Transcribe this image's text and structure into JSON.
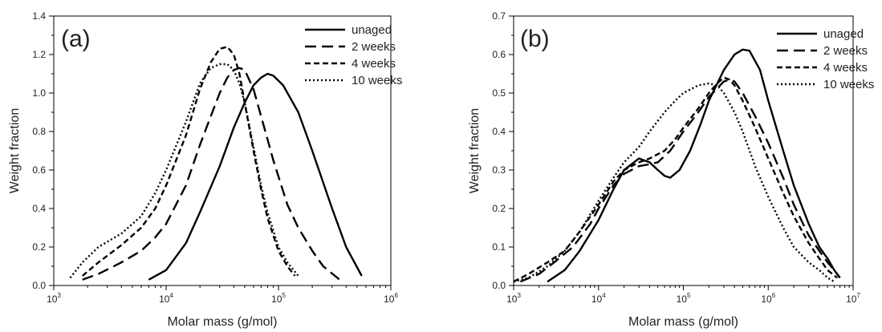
{
  "chart_data": [
    {
      "type": "line",
      "panel_label": "(a)",
      "xlabel": "Molar mass (g/mol)",
      "ylabel": "Weight fraction",
      "xscale": "log",
      "xlim": [
        1000,
        1000000
      ],
      "ylim": [
        0,
        1.4
      ],
      "xticks": [
        {
          "value": 1000,
          "base": "10",
          "exp": "3"
        },
        {
          "value": 10000,
          "base": "10",
          "exp": "4"
        },
        {
          "value": 100000,
          "base": "10",
          "exp": "5"
        },
        {
          "value": 1000000,
          "base": "10",
          "exp": "6"
        }
      ],
      "yticks": [
        "0.0",
        "0.2",
        "0.4",
        "0.6",
        "0.8",
        "1.0",
        "1.2",
        "1.4"
      ],
      "legend_position": "top-right",
      "grid": false,
      "series": [
        {
          "name": "unaged",
          "style": "solid",
          "x": [
            7000,
            10000,
            15000,
            20000,
            30000,
            40000,
            50000,
            60000,
            70000,
            80000,
            90000,
            110000,
            150000,
            200000,
            300000,
            400000,
            550000
          ],
          "y": [
            0.03,
            0.08,
            0.22,
            0.38,
            0.62,
            0.82,
            0.95,
            1.04,
            1.08,
            1.1,
            1.09,
            1.04,
            0.9,
            0.7,
            0.4,
            0.2,
            0.05
          ]
        },
        {
          "name": "2 weeks",
          "style": "dashed",
          "x": [
            1800,
            2500,
            4000,
            6000,
            8000,
            10000,
            15000,
            20000,
            25000,
            30000,
            35000,
            40000,
            45000,
            50000,
            60000,
            70000,
            90000,
            120000,
            150000,
            200000,
            250000,
            350000
          ],
          "y": [
            0.03,
            0.06,
            0.12,
            0.18,
            0.25,
            0.32,
            0.52,
            0.73,
            0.88,
            1.0,
            1.08,
            1.12,
            1.13,
            1.12,
            1.02,
            0.88,
            0.65,
            0.42,
            0.3,
            0.18,
            0.1,
            0.03
          ]
        },
        {
          "name": "4 weeks",
          "style": "short-dashed",
          "x": [
            1800,
            2500,
            4000,
            6000,
            8000,
            10000,
            15000,
            20000,
            25000,
            30000,
            35000,
            40000,
            45000,
            50000,
            60000,
            70000,
            80000,
            100000,
            120000,
            140000
          ],
          "y": [
            0.05,
            0.12,
            0.21,
            0.3,
            0.4,
            0.52,
            0.78,
            1.02,
            1.16,
            1.23,
            1.24,
            1.2,
            1.1,
            0.95,
            0.7,
            0.5,
            0.35,
            0.18,
            0.1,
            0.05
          ]
        },
        {
          "name": "10 weeks",
          "style": "dotted",
          "x": [
            1400,
            1800,
            2500,
            4000,
            6000,
            8000,
            10000,
            15000,
            20000,
            25000,
            30000,
            35000,
            40000,
            45000,
            50000,
            60000,
            70000,
            80000,
            100000,
            120000,
            150000
          ],
          "y": [
            0.04,
            0.12,
            0.2,
            0.27,
            0.36,
            0.48,
            0.6,
            0.85,
            1.05,
            1.13,
            1.15,
            1.15,
            1.12,
            1.05,
            0.95,
            0.72,
            0.52,
            0.38,
            0.2,
            0.12,
            0.05
          ]
        }
      ]
    },
    {
      "type": "line",
      "panel_label": "(b)",
      "xlabel": "Molar mass (g/mol)",
      "ylabel": "Weight fraction",
      "xscale": "log",
      "xlim": [
        1000,
        10000000
      ],
      "ylim": [
        0,
        0.7
      ],
      "xticks": [
        {
          "value": 1000,
          "base": "10",
          "exp": "3"
        },
        {
          "value": 10000,
          "base": "10",
          "exp": "4"
        },
        {
          "value": 100000,
          "base": "10",
          "exp": "5"
        },
        {
          "value": 1000000,
          "base": "10",
          "exp": "6"
        },
        {
          "value": 10000000,
          "base": "10",
          "exp": "7"
        }
      ],
      "yticks": [
        "0.0",
        "0.1",
        "0.2",
        "0.3",
        "0.4",
        "0.5",
        "0.6",
        "0.7"
      ],
      "legend_position": "top-right",
      "grid": false,
      "series": [
        {
          "name": "unaged",
          "style": "solid",
          "x": [
            2500,
            4000,
            6000,
            10000,
            15000,
            20000,
            30000,
            40000,
            50000,
            60000,
            70000,
            90000,
            120000,
            160000,
            200000,
            300000,
            400000,
            500000,
            600000,
            800000,
            1000000,
            1500000,
            2000000,
            3000000,
            4000000,
            5000000,
            6000000,
            7000000
          ],
          "y": [
            0.01,
            0.04,
            0.09,
            0.17,
            0.25,
            0.3,
            0.33,
            0.32,
            0.3,
            0.285,
            0.28,
            0.3,
            0.35,
            0.42,
            0.48,
            0.56,
            0.6,
            0.613,
            0.61,
            0.56,
            0.48,
            0.35,
            0.26,
            0.16,
            0.1,
            0.07,
            0.04,
            0.02
          ]
        },
        {
          "name": "2 weeks",
          "style": "dashed",
          "x": [
            1200,
            2000,
            3000,
            5000,
            8000,
            10000,
            15000,
            20000,
            30000,
            40000,
            50000,
            70000,
            100000,
            150000,
            200000,
            300000,
            350000,
            400000,
            500000,
            700000,
            1000000,
            1500000,
            2000000,
            3000000,
            4000000,
            5000000,
            6000000,
            7000000
          ],
          "y": [
            0.01,
            0.03,
            0.06,
            0.1,
            0.16,
            0.2,
            0.26,
            0.29,
            0.31,
            0.315,
            0.32,
            0.35,
            0.4,
            0.45,
            0.49,
            0.53,
            0.535,
            0.53,
            0.5,
            0.44,
            0.37,
            0.28,
            0.21,
            0.13,
            0.09,
            0.06,
            0.04,
            0.02
          ]
        },
        {
          "name": "4 weeks",
          "style": "short-dashed",
          "x": [
            1000,
            1500,
            2500,
            4000,
            6000,
            10000,
            15000,
            20000,
            30000,
            40000,
            60000,
            80000,
            100000,
            150000,
            200000,
            250000,
            300000,
            350000,
            400000,
            500000,
            700000,
            1000000,
            1500000,
            2000000,
            3000000,
            4000000,
            5000000,
            6500000
          ],
          "y": [
            0.01,
            0.03,
            0.06,
            0.09,
            0.14,
            0.21,
            0.27,
            0.3,
            0.32,
            0.33,
            0.35,
            0.38,
            0.41,
            0.46,
            0.5,
            0.525,
            0.54,
            0.535,
            0.52,
            0.48,
            0.41,
            0.33,
            0.24,
            0.18,
            0.11,
            0.07,
            0.04,
            0.02
          ]
        },
        {
          "name": "10 weeks",
          "style": "dotted",
          "x": [
            1000,
            1500,
            2500,
            4000,
            6000,
            10000,
            15000,
            20000,
            30000,
            40000,
            60000,
            80000,
            100000,
            150000,
            200000,
            250000,
            300000,
            400000,
            500000,
            700000,
            1000000,
            1500000,
            2000000,
            3000000,
            4000000,
            5000000,
            6000000
          ],
          "y": [
            0.01,
            0.02,
            0.05,
            0.09,
            0.14,
            0.22,
            0.28,
            0.32,
            0.36,
            0.4,
            0.45,
            0.48,
            0.5,
            0.52,
            0.525,
            0.52,
            0.5,
            0.45,
            0.4,
            0.31,
            0.23,
            0.15,
            0.1,
            0.06,
            0.04,
            0.02,
            0.01
          ]
        }
      ]
    }
  ]
}
